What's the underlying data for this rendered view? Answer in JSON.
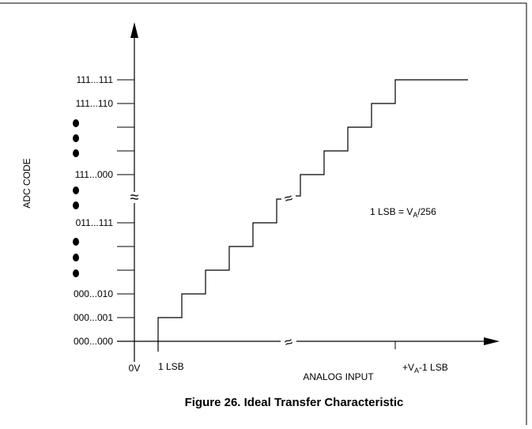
{
  "figure": {
    "caption": "Figure 26. Ideal Transfer Characteristic",
    "y_axis_label": "ADC CODE",
    "x_axis_label": "ANALOG INPUT",
    "annotation_lsb": {
      "main": "1 LSB = V",
      "sub": "A",
      "tail": "/256"
    },
    "y_codes": [
      "111...111",
      "111...110",
      "111...000",
      "011...111",
      "000...010",
      "000...001",
      "000...000"
    ],
    "x_labels": {
      "origin": "0V",
      "first": "1 LSB",
      "last_prefix": "+V",
      "last_sub": "A",
      "last_suffix": "-1 LSB"
    },
    "break_glyph": "≈",
    "colors": {
      "ink": "#000000",
      "background": "#ffffff"
    }
  }
}
